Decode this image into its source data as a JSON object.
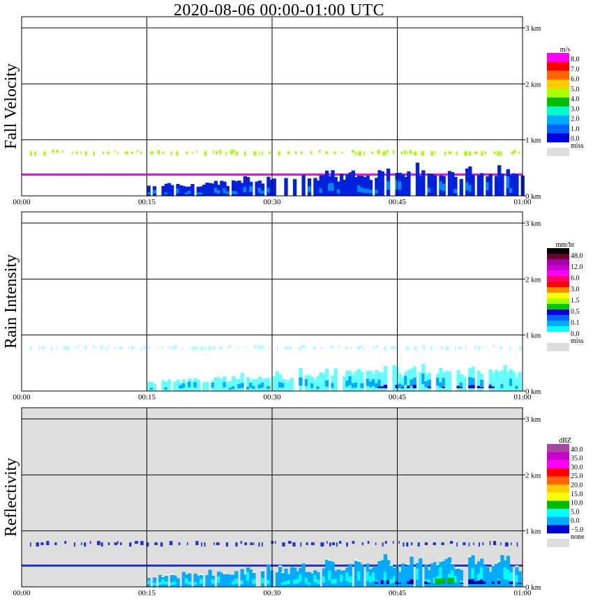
{
  "title": "2020-08-06   00:00-01:00 UTC",
  "chart_data": [
    {
      "type": "heatmap",
      "panel": "Fall Velocity",
      "ylabel": "Fall Velocity",
      "x_ticks": [
        "00:00",
        "00:15",
        "00:30",
        "00:45",
        "01:00"
      ],
      "y_ticks": [
        "0 km",
        "1 km",
        "2 km",
        "3 km"
      ],
      "ylim": [
        0,
        3.0
      ],
      "grid": true,
      "background": "#ffffff",
      "colorbar": {
        "unit": "m/s",
        "labels": [
          "8.0",
          "7.0",
          "6.0",
          "5.0",
          "4.0",
          "3.0",
          "2.0",
          "1.0",
          "0.0"
        ],
        "missing_label": "miss",
        "colors": [
          "#ff00ff",
          "#ff0000",
          "#ff6600",
          "#ffcc00",
          "#aaff00",
          "#00bb00",
          "#00ffcc",
          "#00aaff",
          "#0066ff",
          "#0000dd"
        ],
        "missing_color": "#dddddd"
      },
      "layers": [
        {
          "kind": "dashed-line",
          "height_km": 0.77,
          "start_min": 1,
          "end_min": 60,
          "color": "#aaff00"
        },
        {
          "kind": "solid-line",
          "height_km": 0.38,
          "start_min": 0,
          "end_min": 60,
          "color": "#ff00ff"
        },
        {
          "kind": "rain-echo",
          "start_min": 15,
          "end_min": 60,
          "top_km_max": 0.6,
          "color": "#0022dd",
          "accent": "#0088ff"
        }
      ]
    },
    {
      "type": "heatmap",
      "panel": "Rain Intensity",
      "ylabel": "Rain Intensity",
      "x_ticks": [
        "00:00",
        "00:15",
        "00:30",
        "00:45",
        "01:00"
      ],
      "y_ticks": [
        "0 km",
        "1 km",
        "2 km",
        "3 km"
      ],
      "ylim": [
        0,
        3.0
      ],
      "grid": true,
      "background": "#ffffff",
      "colorbar": {
        "unit": "mm/hr",
        "labels": [
          "48.0",
          "12.0",
          "6.0",
          "3.0",
          "1.5",
          "0.5",
          "0.1",
          "0.0"
        ],
        "missing_label": "miss",
        "colors": [
          "#000000",
          "#660033",
          "#aa00aa",
          "#cc00cc",
          "#ff00ff",
          "#ff0066",
          "#ff0000",
          "#ff8800",
          "#ffff00",
          "#aaff00",
          "#00cc00",
          "#0000dd",
          "#0066ff",
          "#00aaff",
          "#00ffff",
          "#ffffff"
        ],
        "missing_color": "#dddddd"
      },
      "layers": [
        {
          "kind": "dashed-line",
          "height_km": 0.77,
          "start_min": 1,
          "end_min": 60,
          "color": "#aaffff"
        },
        {
          "kind": "rain-echo",
          "start_min": 15,
          "end_min": 60,
          "top_km_max": 0.55,
          "color": "#66ffff",
          "accent": "#00aaff",
          "core": "#0000cc"
        }
      ]
    },
    {
      "type": "heatmap",
      "panel": "Reflectivity",
      "ylabel": "Reflectivity",
      "x_ticks": [
        "00:00",
        "00:15",
        "00:30",
        "00:45",
        "01:00"
      ],
      "y_ticks": [
        "0 km",
        "1 km",
        "2 km",
        "3 km"
      ],
      "ylim": [
        0,
        3.0
      ],
      "grid": true,
      "background": "#dddddd",
      "colorbar": {
        "unit": "dBZ",
        "labels": [
          "40.0",
          "35.0",
          "30.0",
          "25.0",
          "20.0",
          "15.0",
          "10.0",
          "5.0",
          "0.0",
          "−5.0"
        ],
        "missing_label": "none",
        "colors": [
          "#aa44aa",
          "#cc00cc",
          "#ff00ff",
          "#ff0000",
          "#ff6600",
          "#ffcc00",
          "#ffff00",
          "#00bb00",
          "#00ffff",
          "#00aaff",
          "#0000cc"
        ],
        "missing_color": "#dddddd"
      },
      "layers": [
        {
          "kind": "dashed-line",
          "height_km": 0.77,
          "start_min": 1,
          "end_min": 60,
          "color": "#2233cc"
        },
        {
          "kind": "solid-line",
          "height_km": 0.38,
          "start_min": 0,
          "end_min": 60,
          "color": "#2233cc"
        },
        {
          "kind": "rain-echo",
          "start_min": 15,
          "end_min": 60,
          "top_km_max": 0.6,
          "color": "#00aaff",
          "accent": "#00ffff",
          "core": "#0000aa",
          "edge": "#ffffff",
          "spot": "#00bb00"
        }
      ]
    }
  ]
}
